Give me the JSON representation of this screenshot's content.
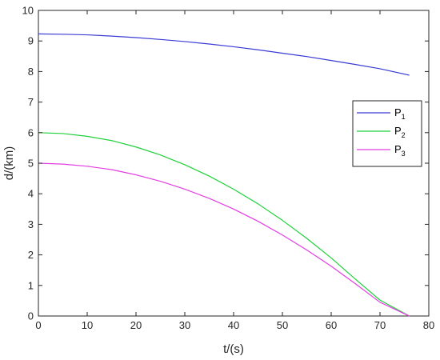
{
  "chart_data": {
    "type": "line",
    "title": "",
    "xlabel": "t/(s)",
    "ylabel": "d/(km)",
    "xlim": [
      0,
      80
    ],
    "ylim": [
      0,
      10
    ],
    "xticks": [
      "0",
      "10",
      "20",
      "30",
      "40",
      "50",
      "60",
      "70",
      "80"
    ],
    "yticks": [
      "0",
      "1",
      "2",
      "3",
      "4",
      "5",
      "6",
      "7",
      "8",
      "9",
      "10"
    ],
    "grid": false,
    "legend_position": "right",
    "series": [
      {
        "name": "P",
        "subscript": "1",
        "color": "#3b3bd6",
        "x": [
          0,
          5,
          10,
          15,
          20,
          25,
          30,
          35,
          40,
          45,
          50,
          55,
          60,
          65,
          70,
          76
        ],
        "y": [
          9.23,
          9.22,
          9.2,
          9.16,
          9.11,
          9.05,
          8.98,
          8.9,
          8.81,
          8.71,
          8.6,
          8.49,
          8.36,
          8.23,
          8.09,
          7.88
        ]
      },
      {
        "name": "P",
        "subscript": "2",
        "color": "#1fd13a",
        "x": [
          0,
          5,
          10,
          15,
          20,
          25,
          30,
          35,
          40,
          45,
          50,
          55,
          60,
          65,
          70,
          76
        ],
        "y": [
          6.0,
          5.97,
          5.88,
          5.74,
          5.53,
          5.27,
          4.95,
          4.58,
          4.15,
          3.67,
          3.13,
          2.54,
          1.9,
          1.2,
          0.52,
          0.0
        ]
      },
      {
        "name": "P",
        "subscript": "3",
        "color": "#e23ee2",
        "x": [
          0,
          5,
          10,
          15,
          20,
          25,
          30,
          35,
          40,
          45,
          50,
          55,
          60,
          65,
          70,
          76
        ],
        "y": [
          5.0,
          4.97,
          4.9,
          4.79,
          4.62,
          4.41,
          4.15,
          3.85,
          3.5,
          3.1,
          2.65,
          2.16,
          1.63,
          1.05,
          0.45,
          0.0
        ]
      }
    ]
  }
}
